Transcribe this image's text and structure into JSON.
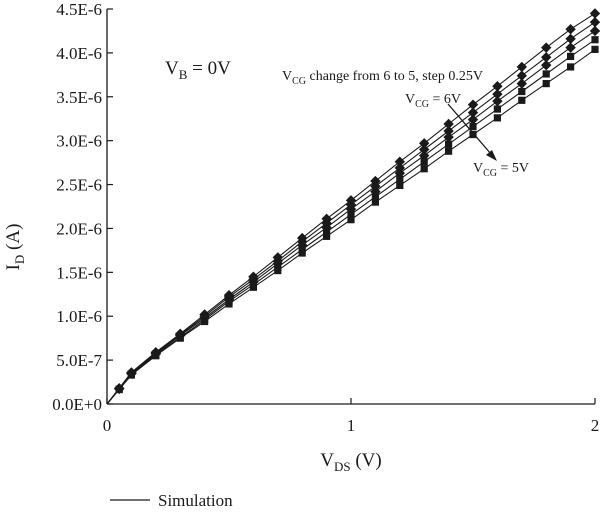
{
  "chart_data": {
    "type": "line",
    "xlabel_main": "V",
    "xlabel_sub": "DS",
    "xlabel_unit": " (V)",
    "ylabel_main": "I",
    "ylabel_sub": "D",
    "ylabel_unit": " (A)",
    "xlim": [
      0,
      2
    ],
    "ylim": [
      0,
      4.5e-06
    ],
    "x_ticks": [
      {
        "value": 0,
        "label": "0"
      },
      {
        "value": 1,
        "label": "1"
      },
      {
        "value": 2,
        "label": "2"
      }
    ],
    "y_ticks": [
      {
        "value": 0,
        "label": "0.0E+0"
      },
      {
        "value": 5e-07,
        "label": "5.0E-7"
      },
      {
        "value": 1e-06,
        "label": "1.0E-6"
      },
      {
        "value": 1.5e-06,
        "label": "1.5E-6"
      },
      {
        "value": 2e-06,
        "label": "2.0E-6"
      },
      {
        "value": 2.5e-06,
        "label": "2.5E-6"
      },
      {
        "value": 3e-06,
        "label": "3.0E-6"
      },
      {
        "value": 3.5e-06,
        "label": "3.5E-6"
      },
      {
        "value": 4e-06,
        "label": "4.0E-6"
      },
      {
        "value": 4.5e-06,
        "label": "4.5E-6"
      }
    ],
    "x": [
      0,
      0.05,
      0.1,
      0.2,
      0.3,
      0.4,
      0.5,
      0.6,
      0.7,
      0.8,
      0.9,
      1.0,
      1.1,
      1.2,
      1.3,
      1.4,
      1.5,
      1.6,
      1.7,
      1.8,
      1.9,
      2.0
    ],
    "series": [
      {
        "marker": "diamond",
        "values": [
          0,
          1.8e-07,
          3.6e-07,
          5.9e-07,
          8e-07,
          1.02e-06,
          1.24e-06,
          1.45e-06,
          1.67e-06,
          1.89e-06,
          2.11e-06,
          2.32e-06,
          2.54e-06,
          2.76e-06,
          2.97e-06,
          3.19e-06,
          3.41e-06,
          3.62e-06,
          3.84e-06,
          4.06e-06,
          4.27e-06,
          4.45e-06
        ]
      },
      {
        "marker": "diamond",
        "values": [
          0,
          1.75e-07,
          3.5e-07,
          5.8e-07,
          7.9e-07,
          1e-06,
          1.22e-06,
          1.42e-06,
          1.63e-06,
          1.85e-06,
          2.06e-06,
          2.27e-06,
          2.48e-06,
          2.69e-06,
          2.9e-06,
          3.11e-06,
          3.32e-06,
          3.53e-06,
          3.74e-06,
          3.95e-06,
          4.16e-06,
          4.35e-06
        ]
      },
      {
        "marker": "diamond",
        "values": [
          0,
          1.72e-07,
          3.45e-07,
          5.7e-07,
          7.8e-07,
          9.8e-07,
          1.19e-06,
          1.39e-06,
          1.6e-06,
          1.81e-06,
          2.01e-06,
          2.22e-06,
          2.42e-06,
          2.63e-06,
          2.83e-06,
          3.04e-06,
          3.24e-06,
          3.45e-06,
          3.65e-06,
          3.86e-06,
          4.06e-06,
          4.25e-06
        ]
      },
      {
        "marker": "square",
        "values": [
          0,
          1.7e-07,
          3.4e-07,
          5.6e-07,
          7.6e-07,
          9.6e-07,
          1.17e-06,
          1.36e-06,
          1.56e-06,
          1.76e-06,
          1.96e-06,
          2.16e-06,
          2.36e-06,
          2.56e-06,
          2.76e-06,
          2.96e-06,
          3.16e-06,
          3.36e-06,
          3.56e-06,
          3.76e-06,
          3.96e-06,
          4.15e-06
        ]
      },
      {
        "marker": "square",
        "values": [
          0,
          1.65e-07,
          3.3e-07,
          5.5e-07,
          7.5e-07,
          9.4e-07,
          1.14e-06,
          1.33e-06,
          1.52e-06,
          1.72e-06,
          1.91e-06,
          2.1e-06,
          2.3e-06,
          2.49e-06,
          2.68e-06,
          2.88e-06,
          3.07e-06,
          3.26e-06,
          3.46e-06,
          3.65e-06,
          3.84e-06,
          4.04e-06
        ]
      }
    ],
    "annotations": {
      "vb": {
        "main": "V",
        "sub": "B",
        "rest": " = 0V"
      },
      "change": {
        "main": "V",
        "sub": "CG",
        "rest": " change from 6 to 5, step 0.25V"
      },
      "vcg6": {
        "main": "V",
        "sub": "CG",
        "rest": " = 6V"
      },
      "vcg5": {
        "main": "V",
        "sub": "CG",
        "rest": " = 5V"
      }
    },
    "legend": {
      "label": "Simulation",
      "placement": "bottom-left"
    },
    "colors": {
      "line": "#1a1a1a",
      "marker": "#1a1a1a",
      "axis": "#1a1a1a"
    }
  }
}
